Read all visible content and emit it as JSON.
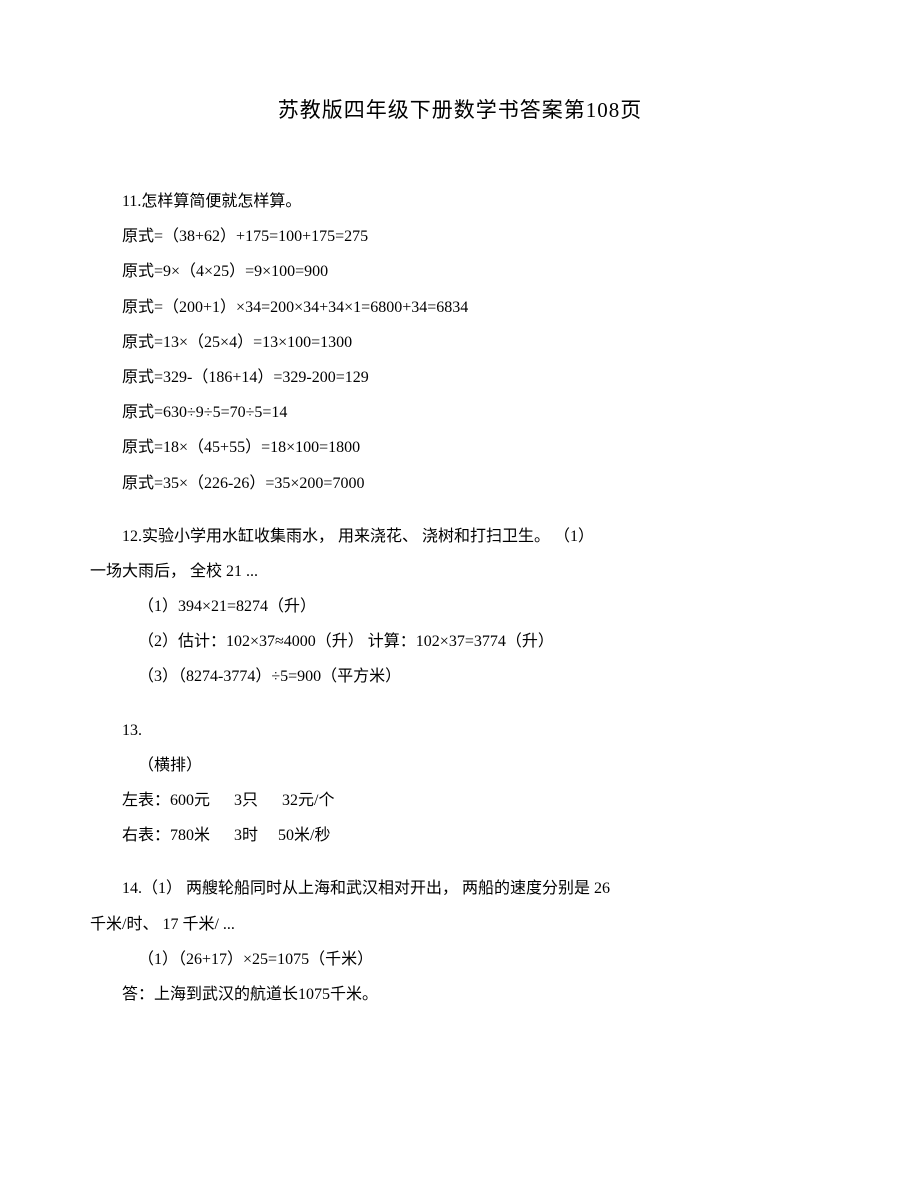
{
  "title": "苏教版四年级下册数学书答案第108页",
  "q11": {
    "heading": "11.怎样算简便就怎样算。",
    "lines": [
      "原式=（38+62）+175=100+175=275",
      "原式=9×（4×25）=9×100=900",
      "原式=（200+1）×34=200×34+34×1=6800+34=6834",
      "原式=13×（25×4）=13×100=1300",
      "原式=329-（186+14）=329-200=129",
      "原式=630÷9÷5=70÷5=14",
      "原式=18×（45+55）=18×100=1800",
      "原式=35×（226-26）=35×200=7000"
    ]
  },
  "q12": {
    "heading_line1": "12.实验小学用水缸收集雨水， 用来浇花、 浇树和打扫卫生。 （1）",
    "heading_line2": "一场大雨后， 全校 21 ...",
    "subs": [
      "（1）394×21=8274（升）",
      "（2）估计：102×37≈4000（升）     计算：102×37=3774（升）",
      "（3）（8274-3774）÷5=900（平方米）"
    ]
  },
  "q13": {
    "heading": "13.",
    "sub_heading": "（横排）",
    "left_label": "左表：",
    "left_v1": "600元",
    "left_v2": "3只",
    "left_v3": "32元/个",
    "right_label": "右表：",
    "right_v1": "780米",
    "right_v2": "3时",
    "right_v3": "50米/秒"
  },
  "q14": {
    "heading_line1": "14.（1） 两艘轮船同时从上海和武汉相对开出， 两船的速度分别是 26",
    "heading_line2": "千米/时、 17 千米/ ...",
    "sub1": "（1）（26+17）×25=1075（千米）",
    "answer": "答：上海到武汉的航道长1075千米。"
  }
}
